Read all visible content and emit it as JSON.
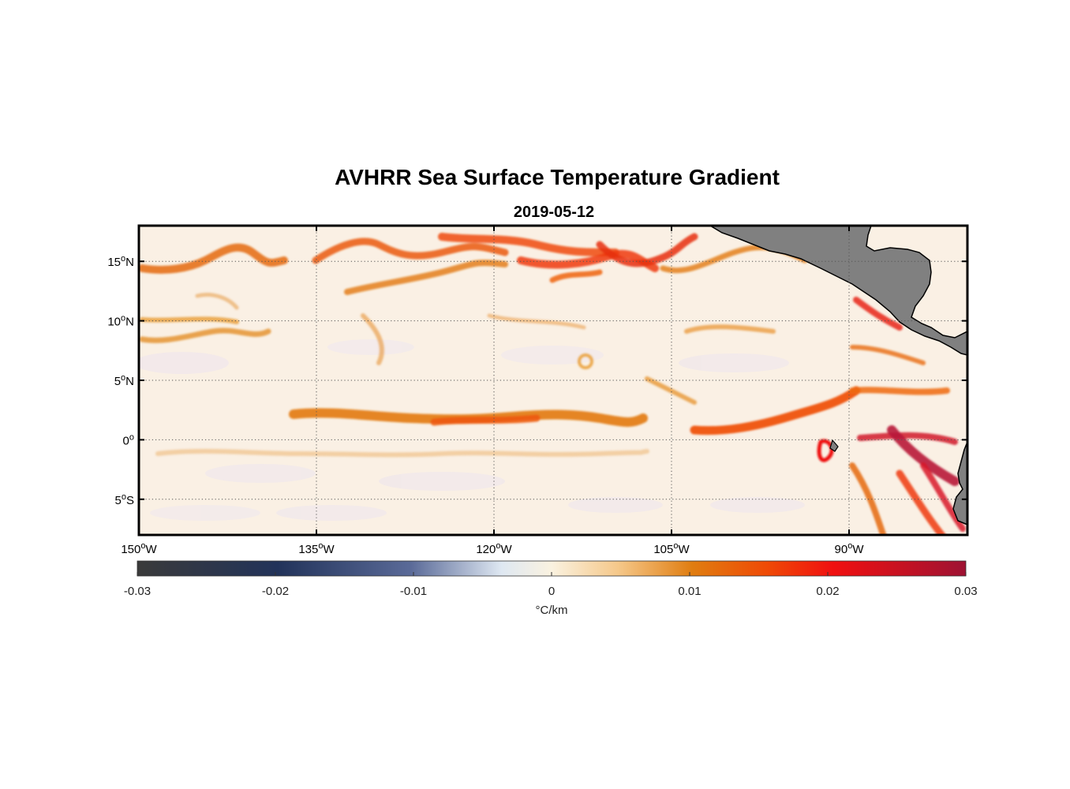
{
  "title": "AVHRR Sea Surface Temperature Gradient",
  "subtitle": "2019-05-12",
  "map": {
    "lon_range": [
      -150,
      -80
    ],
    "lat_range": [
      -8,
      18
    ],
    "gridlines": "dotted",
    "land_color": "#808080",
    "lon_ticks": [
      {
        "value": -150,
        "num": "150",
        "hem": "W"
      },
      {
        "value": -135,
        "num": "135",
        "hem": "W"
      },
      {
        "value": -120,
        "num": "120",
        "hem": "W"
      },
      {
        "value": -105,
        "num": "105",
        "hem": "W"
      },
      {
        "value": -90,
        "num": "90",
        "hem": "W"
      }
    ],
    "lat_ticks": [
      {
        "value": 15,
        "num": "15",
        "hem": "N"
      },
      {
        "value": 10,
        "num": "10",
        "hem": "N"
      },
      {
        "value": 5,
        "num": "5",
        "hem": "N"
      },
      {
        "value": 0,
        "num": "0",
        "hem": ""
      },
      {
        "value": -5,
        "num": "5",
        "hem": "S"
      }
    ],
    "degree_symbol": "o"
  },
  "colorbar": {
    "min": -0.03,
    "max": 0.03,
    "tick_labels": [
      "-0.03",
      "-0.02",
      "-0.01",
      "0",
      "0.01",
      "0.02",
      "0.03"
    ],
    "tick_values": [
      -0.03,
      -0.02,
      -0.01,
      0,
      0.01,
      0.02,
      0.03
    ],
    "unit": "°C/km",
    "colors": {
      "c_min": "#3a3a3a",
      "c_neg2": "#22335a",
      "c_neg1": "#5a6a98",
      "c_zero_lo": "#dfe8f2",
      "c_zero": "#faf2e0",
      "c_pos05": "#f5c88a",
      "c_pos1": "#e07d10",
      "c_pos15": "#ef4a06",
      "c_pos2": "#f01010",
      "c_max": "#9e1233"
    }
  }
}
